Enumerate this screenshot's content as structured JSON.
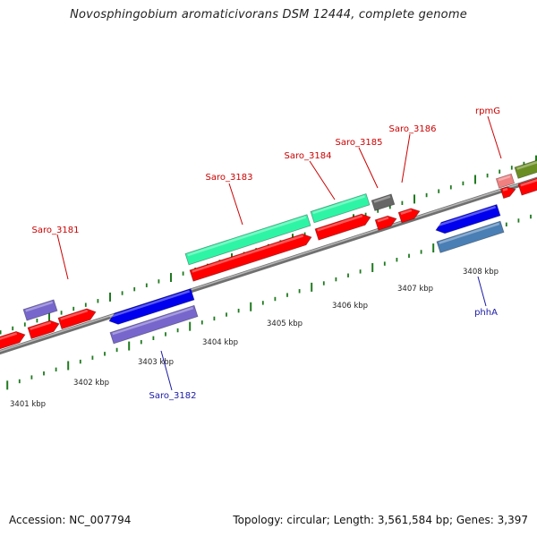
{
  "title": "Novosphingobium aromaticivorans DSM 12444, complete genome",
  "footer": {
    "accession": "Accession: NC_007794",
    "summary": "Topology: circular; Length: 3,561,584 bp; Genes: 3,397"
  },
  "scale_labels": [
    "3401 kbp",
    "3402 kbp",
    "3403 kbp",
    "3404 kbp",
    "3405 kbp",
    "3406 kbp",
    "3407 kbp",
    "3408 kbp"
  ],
  "gene_labels": [
    "Saro_3181",
    "Saro_3182",
    "Saro_3183",
    "Saro_3184",
    "Saro_3185",
    "Saro_3186",
    "rpmG",
    "phhA"
  ],
  "colors": {
    "backbone": "#8c8c8c",
    "tick": "#1f7a1f",
    "label_red": "#cc0000",
    "label_blue": "#1a1aa8",
    "gene_red": "#ff0000",
    "gene_green": "#2ef5a5",
    "gene_purple": "#7766cc",
    "gene_blue": "#0000ee",
    "gene_steel": "#4a7fb5",
    "gene_gray": "#666666",
    "gene_pink": "#f08080",
    "gene_olive": "#6b8e23"
  }
}
